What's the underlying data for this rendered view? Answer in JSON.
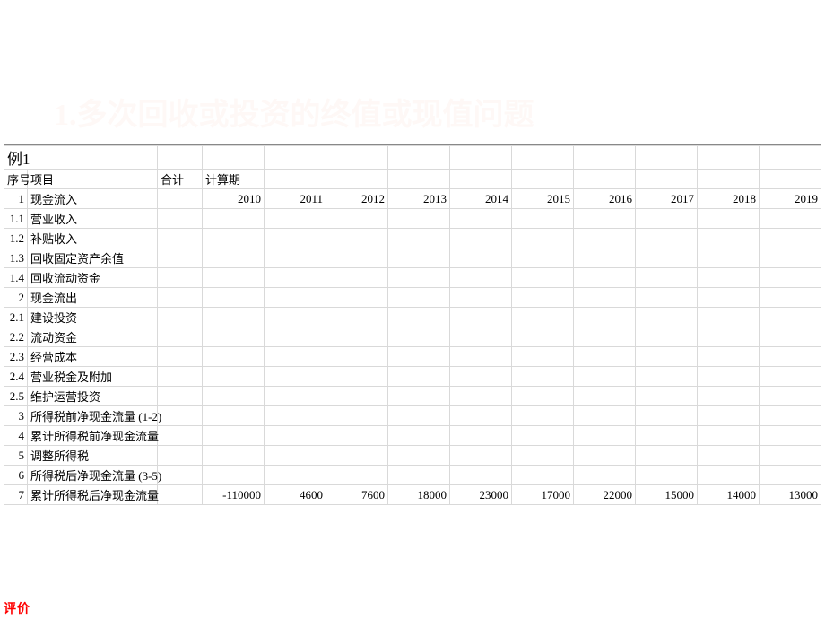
{
  "title_text": "1.多次回收或投资的终值或现值问题",
  "title_color": "#fef8f6",
  "example_label": "例1",
  "header": {
    "seq": "序号",
    "item": "项目",
    "total": "合计",
    "period": "计算期"
  },
  "years": [
    "2010",
    "2011",
    "2012",
    "2013",
    "2014",
    "2015",
    "2016",
    "2017",
    "2018",
    "2019"
  ],
  "rows": [
    {
      "seq": "1",
      "name": "现金流入",
      "blue": true
    },
    {
      "seq": "1.1",
      "name": "营业收入",
      "blue": false
    },
    {
      "seq": "1.2",
      "name": "补贴收入",
      "blue": false
    },
    {
      "seq": "1.3",
      "name": "回收固定资产余值",
      "blue": false
    },
    {
      "seq": "1.4",
      "name": "回收流动资金",
      "blue": false
    },
    {
      "seq": "2",
      "name": "现金流出",
      "blue": false
    },
    {
      "seq": "2.1",
      "name": "建设投资",
      "blue": false
    },
    {
      "seq": "2.2",
      "name": "流动资金",
      "blue": false
    },
    {
      "seq": "2.3",
      "name": "经营成本",
      "blue": false
    },
    {
      "seq": "2.4",
      "name": "营业税金及附加",
      "blue": false
    },
    {
      "seq": "2.5",
      "name": "维护运营投资",
      "blue": false
    },
    {
      "seq": "3",
      "name": "所得税前净现金流量 (1-2)",
      "blue": false
    },
    {
      "seq": "4",
      "name": "累计所得税前净现金流量",
      "blue": false
    },
    {
      "seq": "5",
      "name": "调整所得税",
      "blue": false
    },
    {
      "seq": "6",
      "name": "所得税后净现金流量 (3-5)",
      "blue": false
    },
    {
      "seq": "7",
      "name": "累计所得税后净现金流量",
      "blue": false
    }
  ],
  "last_row_values": [
    "-110000",
    "4600",
    "7600",
    "18000",
    "23000",
    "17000",
    "22000",
    "15000",
    "14000",
    "13000"
  ],
  "bottom_text": "评价",
  "colors": {
    "blue": "#0000ff",
    "red": "#ff0000",
    "grid": "#d9d9d9",
    "bg": "#ffffff"
  },
  "fontsizes": {
    "title": 34,
    "cell": 13,
    "example": 17
  }
}
